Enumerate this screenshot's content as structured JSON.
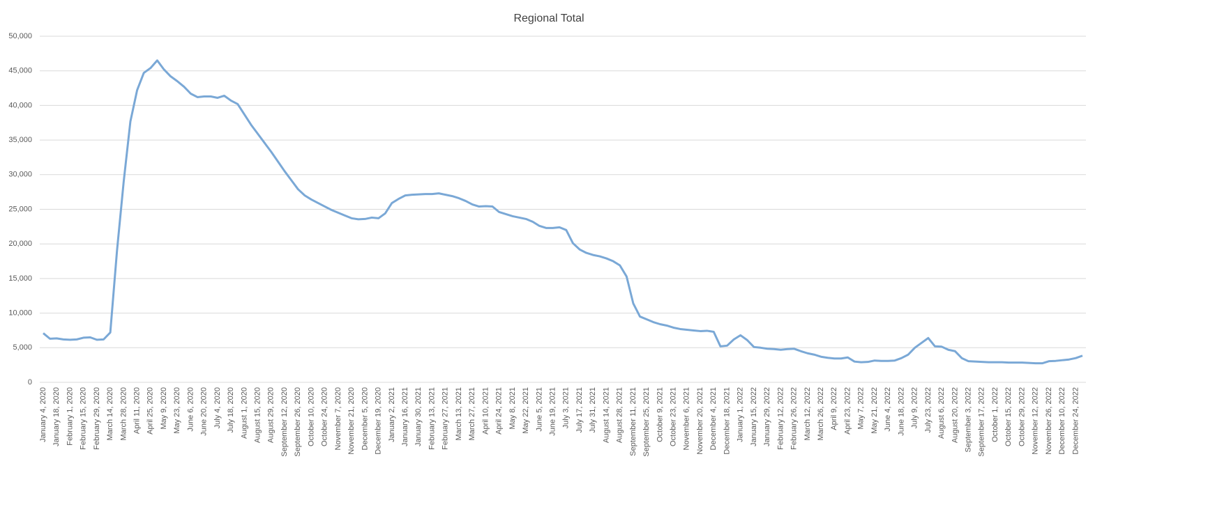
{
  "chart_data": {
    "type": "line",
    "title": "Regional Total",
    "categories": [
      "January 4, 2020",
      null,
      "January 18, 2020",
      null,
      "February 1, 2020",
      null,
      "February 15, 2020",
      null,
      "February 29, 2020",
      null,
      "March 14, 2020",
      null,
      "March 28, 2020",
      null,
      "April 11, 2020",
      null,
      "April 25, 2020",
      null,
      "May 9, 2020",
      null,
      "May 23, 2020",
      null,
      "June 6, 2020",
      null,
      "June 20, 2020",
      null,
      "July 4, 2020",
      null,
      "July 18, 2020",
      null,
      "August 1, 2020",
      null,
      "August 15, 2020",
      null,
      "August 29, 2020",
      null,
      "September 12, 2020",
      null,
      "September 26, 2020",
      null,
      "October 10, 2020",
      null,
      "October 24, 2020",
      null,
      "November 7, 2020",
      null,
      "November 21, 2020",
      null,
      "December 5, 2020",
      null,
      "December 19, 2020",
      null,
      "January 2, 2021",
      null,
      "January 16, 2021",
      null,
      "January 30, 2021",
      null,
      "February 13, 2021",
      null,
      "February 27, 2021",
      null,
      "March 13, 2021",
      null,
      "March 27, 2021",
      null,
      "April 10, 2021",
      null,
      "April 24, 2021",
      null,
      "May 8, 2021",
      null,
      "May 22, 2021",
      null,
      "June 5, 2021",
      null,
      "June 19, 2021",
      null,
      "July 3, 2021",
      null,
      "July 17, 2021",
      null,
      "July 31, 2021",
      null,
      "August 14, 2021",
      null,
      "August 28, 2021",
      null,
      "September 11, 2021",
      null,
      "September 25, 2021",
      null,
      "October 9, 2021",
      null,
      "October 23, 2021",
      null,
      "November 6, 2021",
      null,
      "November 20, 2021",
      null,
      "December 4, 2021",
      null,
      "December 18, 2021",
      null,
      "January 1, 2022",
      null,
      "January 15, 2022",
      null,
      "January 29, 2022",
      null,
      "February 12, 2022",
      null,
      "February 26, 2022",
      null,
      "March 12, 2022",
      null,
      "March 26, 2022",
      null,
      "April 9, 2022",
      null,
      "April 23, 2022",
      null,
      "May 7, 2022",
      null,
      "May 21, 2022",
      null,
      "June 4, 2022",
      null,
      "June 18, 2022",
      null,
      "July 9, 2022",
      null,
      "July 23, 2022",
      null,
      "August 6, 2022",
      null,
      "August 20, 2022",
      null,
      "September 3, 2022",
      null,
      "September 17, 2022",
      null,
      "October 1, 2022",
      null,
      "October 15, 2022",
      null,
      "October 29, 2022",
      null,
      "November 12, 2022",
      null,
      "November 26, 2022",
      null,
      "December 10, 2022",
      null,
      "December 24, 2022",
      null
    ],
    "series": [
      {
        "name": "Regional Total",
        "color": "#7aa8d6",
        "values": [
          7100,
          6300,
          6350,
          6200,
          6150,
          6200,
          6450,
          6500,
          6150,
          6200,
          7200,
          19000,
          29000,
          37700,
          42200,
          44700,
          45400,
          46500,
          45200,
          44200,
          43500,
          42700,
          41700,
          41200,
          41300,
          41300,
          41100,
          41400,
          40700,
          40200,
          38700,
          37200,
          35900,
          34600,
          33300,
          31900,
          30500,
          29200,
          27900,
          27000,
          26400,
          25900,
          25400,
          24900,
          24500,
          24100,
          23700,
          23550,
          23600,
          23800,
          23700,
          24400,
          25900,
          26500,
          27000,
          27100,
          27150,
          27200,
          27200,
          27300,
          27100,
          26900,
          26600,
          26200,
          25700,
          25400,
          25450,
          25400,
          24600,
          24300,
          24000,
          23800,
          23600,
          23200,
          22600,
          22300,
          22300,
          22400,
          22000,
          20100,
          19200,
          18700,
          18400,
          18200,
          17900,
          17500,
          16900,
          15300,
          11400,
          9500,
          9100,
          8700,
          8400,
          8200,
          7900,
          7700,
          7600,
          7500,
          7400,
          7450,
          7300,
          5200,
          5300,
          6200,
          6800,
          6100,
          5100,
          5000,
          4850,
          4800,
          4700,
          4800,
          4850,
          4500,
          4200,
          4000,
          3700,
          3550,
          3450,
          3450,
          3600,
          3000,
          2900,
          2950,
          3150,
          3100,
          3100,
          3150,
          3500,
          4000,
          5000,
          5700,
          6400,
          5200,
          5150,
          4700,
          4500,
          3500,
          3050,
          3000,
          2950,
          2900,
          2900,
          2900,
          2850,
          2850,
          2850,
          2800,
          2750,
          2750,
          3050,
          3100,
          3200,
          3300,
          3500,
          3850
        ]
      }
    ],
    "ylim": [
      0,
      50000
    ],
    "yticks": [
      0,
      {
        "value": 5000,
        "label": "5,000"
      },
      {
        "value": 10000,
        "label": "10,000"
      },
      {
        "value": 15000,
        "label": "15,000"
      },
      {
        "value": 20000,
        "label": "20,000"
      },
      {
        "value": 25000,
        "label": "25,000"
      },
      {
        "value": 30000,
        "label": "30,000"
      },
      {
        "value": 35000,
        "label": "35,000"
      },
      {
        "value": 40000,
        "label": "40,000"
      },
      {
        "value": 45000,
        "label": "45,000"
      },
      {
        "value": 50000,
        "label": "50,000"
      }
    ],
    "grid": true
  }
}
